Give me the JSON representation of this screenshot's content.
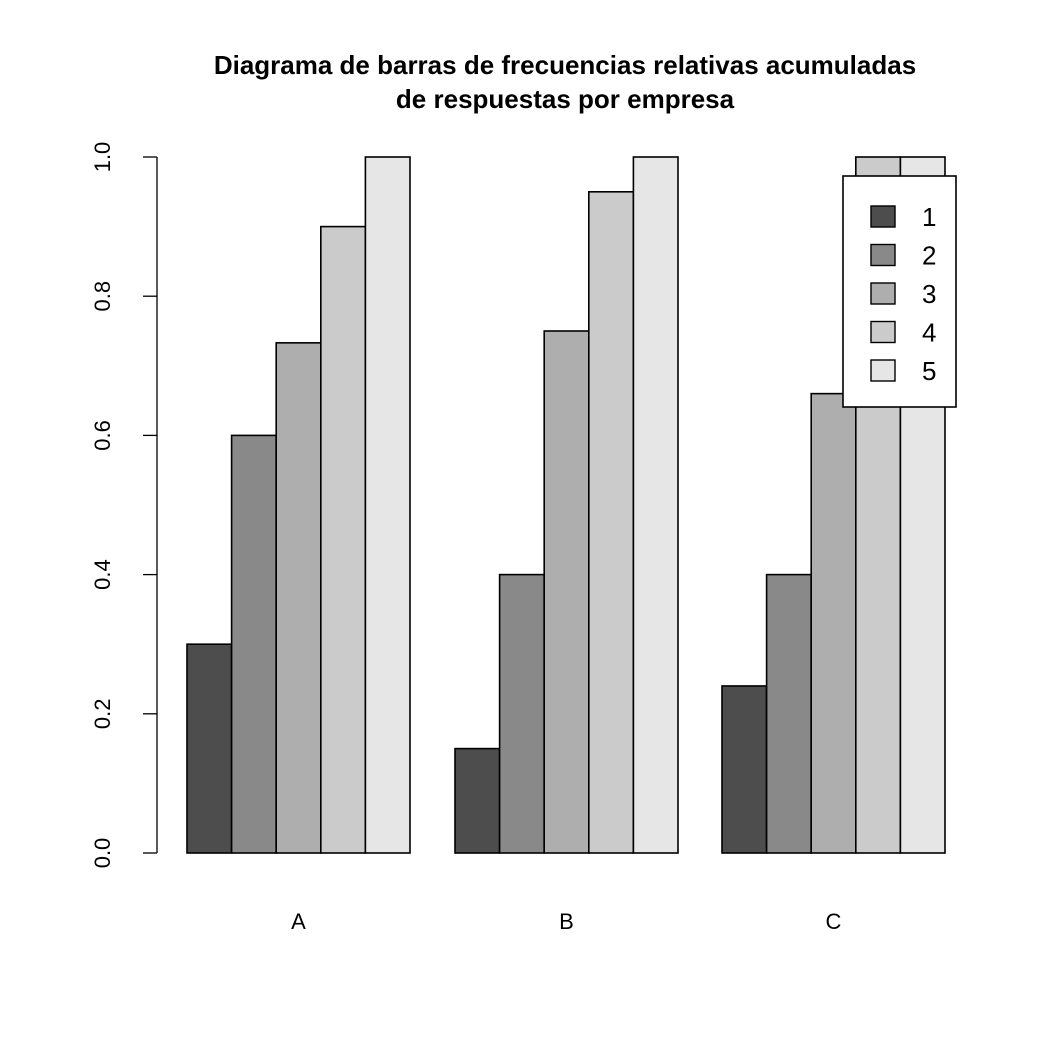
{
  "chart_data": {
    "type": "bar",
    "title": "Diagrama de barras de frecuencias relativas acumuladas",
    "subtitle": "de respuestas por empresa",
    "categories": [
      "A",
      "B",
      "C"
    ],
    "series": [
      {
        "name": "1",
        "color": "#4d4d4d",
        "values": [
          0.3,
          0.15,
          0.24
        ]
      },
      {
        "name": "2",
        "color": "#898989",
        "values": [
          0.6,
          0.4,
          0.4
        ]
      },
      {
        "name": "3",
        "color": "#aeaeae",
        "values": [
          0.733,
          0.75,
          0.66
        ]
      },
      {
        "name": "4",
        "color": "#cbcbcb",
        "values": [
          0.9,
          0.95,
          1.0
        ]
      },
      {
        "name": "5",
        "color": "#e6e6e6",
        "values": [
          1.0,
          1.0,
          1.0
        ]
      }
    ],
    "ylim": [
      0,
      1
    ],
    "yticks": [
      "0.0",
      "0.2",
      "0.4",
      "0.6",
      "0.8",
      "1.0"
    ],
    "legend": {
      "position": "top-right"
    },
    "grid": false
  }
}
